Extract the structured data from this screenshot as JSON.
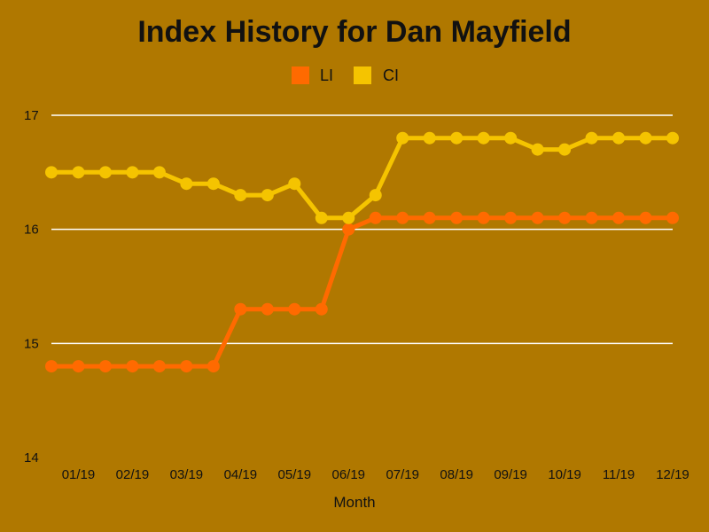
{
  "chart_data": {
    "type": "line",
    "title": "Index History for Dan Mayfield",
    "xlabel": "Month",
    "ylabel": "",
    "ylim": [
      14,
      17
    ],
    "yticks": [
      "14",
      "15",
      "16",
      "17"
    ],
    "grid": true,
    "legend_position": "top-center",
    "x_tick_labels": [
      "01/19",
      "02/19",
      "03/19",
      "04/19",
      "05/19",
      "06/19",
      "07/19",
      "08/19",
      "09/19",
      "10/19",
      "11/19",
      "12/19"
    ],
    "series": [
      {
        "name": "LI",
        "color": "#ff6a00",
        "values": [
          14.8,
          14.8,
          14.8,
          14.8,
          14.8,
          14.8,
          14.8,
          15.3,
          15.3,
          15.3,
          15.3,
          16.0,
          16.1,
          16.1,
          16.1,
          16.1,
          16.1,
          16.1,
          16.1,
          16.1,
          16.1,
          16.1,
          16.1,
          16.1
        ]
      },
      {
        "name": "CI",
        "color": "#f5c400",
        "values": [
          16.5,
          16.5,
          16.5,
          16.5,
          16.5,
          16.4,
          16.4,
          16.3,
          16.3,
          16.4,
          16.1,
          16.1,
          16.3,
          16.8,
          16.8,
          16.8,
          16.8,
          16.8,
          16.7,
          16.7,
          16.8,
          16.8,
          16.8,
          16.8
        ]
      }
    ]
  }
}
